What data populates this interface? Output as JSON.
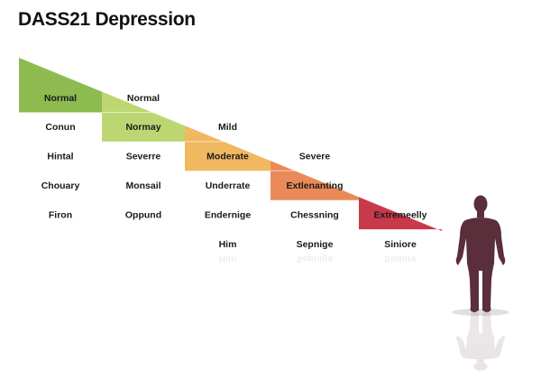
{
  "title": "DASS21 Depression",
  "columns": [
    {
      "color": "#8dbb4f",
      "colored_labels": [
        "Normal"
      ],
      "labels": [
        "Conun",
        "Hintal",
        "Chouary",
        "Firon"
      ]
    },
    {
      "color": "#bcd772",
      "colored_labels": [
        "Normal",
        "Normay"
      ],
      "labels": [
        "Severre",
        "Monsail",
        "Oppund"
      ]
    },
    {
      "color": "#f0b860",
      "colored_labels": [
        "Mild",
        "Moderate"
      ],
      "labels": [
        "Underrate",
        "Endernige",
        "Him"
      ]
    },
    {
      "color": "#ea8a58",
      "colored_labels": [
        "Severe",
        "Extlenanting"
      ],
      "labels": [
        "Chessning",
        "Sepnige"
      ]
    },
    {
      "color": "#c8394a",
      "colored_labels": [
        "Extremeelly"
      ],
      "labels": [
        "Siniore"
      ]
    }
  ],
  "figure": {
    "icon": "human-silhouette-icon",
    "color": "#5b2e3b"
  }
}
